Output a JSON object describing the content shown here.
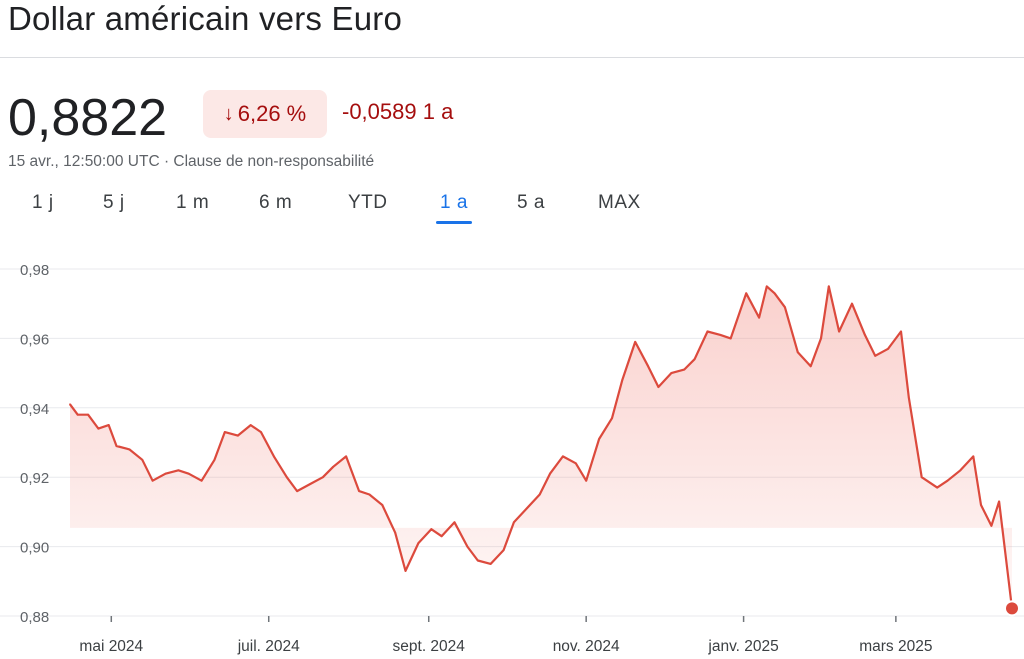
{
  "header": {
    "title": "Dollar américain vers Euro"
  },
  "quote": {
    "price": "0,8822",
    "change_pct": "6,26 %",
    "change_arrow": "↓",
    "change_abs": "-0,0589 1 a",
    "meta": "15 avr., 12:50:00 UTC · Clause de non-responsabilité"
  },
  "colors": {
    "line": "#dc4a3d",
    "negative_text": "#a50e0e",
    "pill_bg": "#fce8e6",
    "active_tab": "#1a73e8",
    "grid": "#e8eaed"
  },
  "tabs": [
    {
      "label": "1 j",
      "active": false
    },
    {
      "label": "5 j",
      "active": false
    },
    {
      "label": "1 m",
      "active": false
    },
    {
      "label": "6 m",
      "active": false
    },
    {
      "label": "YTD",
      "active": false
    },
    {
      "label": "1 a",
      "active": true
    },
    {
      "label": "5 a",
      "active": false
    },
    {
      "label": "MAX",
      "active": false
    }
  ],
  "chart_data": {
    "type": "area",
    "title": "",
    "xlabel": "",
    "ylabel": "",
    "ylim": [
      0.88,
      0.98
    ],
    "yticks": [
      "0,98",
      "0,96",
      "0,94",
      "0,92",
      "0,90",
      "0,88"
    ],
    "xticks": [
      "mai 2024",
      "juil. 2024",
      "sept. 2024",
      "nov. 2024",
      "janv. 2025",
      "mars 2025"
    ],
    "reference_value": 0.9054,
    "grid": true,
    "series": [
      {
        "x": [
          "2024-04-15",
          "2024-04-18",
          "2024-04-22",
          "2024-04-26",
          "2024-04-30",
          "2024-05-03",
          "2024-05-08",
          "2024-05-13",
          "2024-05-17",
          "2024-05-22",
          "2024-05-27",
          "2024-05-31",
          "2024-06-05",
          "2024-06-10",
          "2024-06-14",
          "2024-06-19",
          "2024-06-24",
          "2024-06-28",
          "2024-07-03",
          "2024-07-08",
          "2024-07-12",
          "2024-07-17",
          "2024-07-22",
          "2024-07-26",
          "2024-07-31",
          "2024-08-05",
          "2024-08-09",
          "2024-08-14",
          "2024-08-19",
          "2024-08-23",
          "2024-08-28",
          "2024-09-02",
          "2024-09-06",
          "2024-09-11",
          "2024-09-16",
          "2024-09-20",
          "2024-09-25",
          "2024-09-30",
          "2024-10-04",
          "2024-10-09",
          "2024-10-14",
          "2024-10-18",
          "2024-10-23",
          "2024-10-28",
          "2024-11-01",
          "2024-11-06",
          "2024-11-11",
          "2024-11-15",
          "2024-11-20",
          "2024-11-25",
          "2024-11-29",
          "2024-12-04",
          "2024-12-09",
          "2024-12-13",
          "2024-12-18",
          "2024-12-23",
          "2024-12-27",
          "2025-01-02",
          "2025-01-07",
          "2025-01-10",
          "2025-01-13",
          "2025-01-17",
          "2025-01-22",
          "2025-01-27",
          "2025-01-31",
          "2025-02-03",
          "2025-02-07",
          "2025-02-12",
          "2025-02-17",
          "2025-02-21",
          "2025-02-26",
          "2025-03-03",
          "2025-03-06",
          "2025-03-11",
          "2025-03-17",
          "2025-03-21",
          "2025-03-26",
          "2025-03-31",
          "2025-04-03",
          "2025-04-07",
          "2025-04-10",
          "2025-04-15"
        ],
        "values": [
          0.941,
          0.938,
          0.938,
          0.934,
          0.935,
          0.929,
          0.928,
          0.925,
          0.919,
          0.921,
          0.922,
          0.921,
          0.919,
          0.925,
          0.933,
          0.932,
          0.935,
          0.933,
          0.926,
          0.92,
          0.916,
          0.918,
          0.92,
          0.923,
          0.926,
          0.916,
          0.915,
          0.912,
          0.904,
          0.893,
          0.901,
          0.905,
          0.903,
          0.907,
          0.9,
          0.896,
          0.895,
          0.899,
          0.907,
          0.911,
          0.915,
          0.921,
          0.926,
          0.924,
          0.919,
          0.931,
          0.937,
          0.948,
          0.959,
          0.952,
          0.946,
          0.95,
          0.951,
          0.954,
          0.962,
          0.961,
          0.96,
          0.973,
          0.966,
          0.975,
          0.973,
          0.969,
          0.956,
          0.952,
          0.96,
          0.975,
          0.962,
          0.97,
          0.961,
          0.955,
          0.957,
          0.962,
          0.943,
          0.92,
          0.917,
          0.919,
          0.922,
          0.926,
          0.912,
          0.906,
          0.913,
          0.8822
        ]
      }
    ]
  }
}
